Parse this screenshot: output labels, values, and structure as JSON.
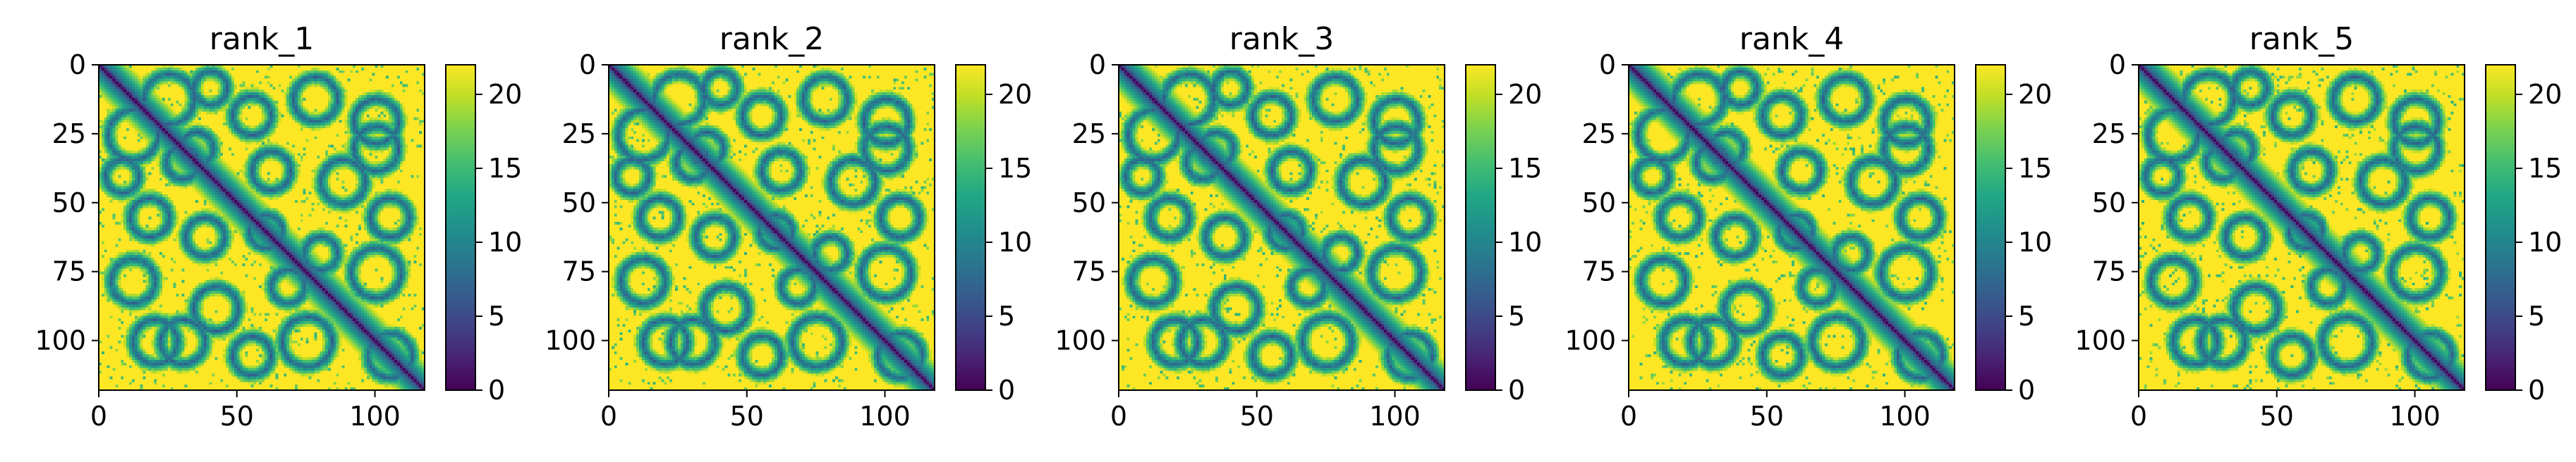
{
  "chart_data": [
    {
      "type": "heatmap",
      "title": "rank_1",
      "rows": 118,
      "cols": 118,
      "xlim": [
        0,
        118
      ],
      "ylim": [
        118,
        0
      ],
      "x_ticks": [
        0,
        50,
        100
      ],
      "y_ticks": [
        0,
        25,
        50,
        75,
        100
      ],
      "colorbar": {
        "min": 0,
        "max": 22,
        "ticks": [
          0,
          5,
          10,
          15,
          20
        ],
        "colormap": "viridis"
      },
      "diagonal_value": 0
    },
    {
      "type": "heatmap",
      "title": "rank_2",
      "rows": 118,
      "cols": 118,
      "xlim": [
        0,
        118
      ],
      "ylim": [
        118,
        0
      ],
      "x_ticks": [
        0,
        50,
        100
      ],
      "y_ticks": [
        0,
        25,
        50,
        75,
        100
      ],
      "colorbar": {
        "min": 0,
        "max": 22,
        "ticks": [
          0,
          5,
          10,
          15,
          20
        ],
        "colormap": "viridis"
      },
      "diagonal_value": 0
    },
    {
      "type": "heatmap",
      "title": "rank_3",
      "rows": 118,
      "cols": 118,
      "xlim": [
        0,
        118
      ],
      "ylim": [
        118,
        0
      ],
      "x_ticks": [
        0,
        50,
        100
      ],
      "y_ticks": [
        0,
        25,
        50,
        75,
        100
      ],
      "colorbar": {
        "min": 0,
        "max": 22,
        "ticks": [
          0,
          5,
          10,
          15,
          20
        ],
        "colormap": "viridis"
      },
      "diagonal_value": 0
    },
    {
      "type": "heatmap",
      "title": "rank_4",
      "rows": 118,
      "cols": 118,
      "xlim": [
        0,
        118
      ],
      "ylim": [
        118,
        0
      ],
      "x_ticks": [
        0,
        50,
        100
      ],
      "y_ticks": [
        0,
        25,
        50,
        75,
        100
      ],
      "colorbar": {
        "min": 0,
        "max": 22,
        "ticks": [
          0,
          5,
          10,
          15,
          20
        ],
        "colormap": "viridis"
      },
      "diagonal_value": 0
    },
    {
      "type": "heatmap",
      "title": "rank_5",
      "rows": 118,
      "cols": 118,
      "xlim": [
        0,
        118
      ],
      "ylim": [
        118,
        0
      ],
      "x_ticks": [
        0,
        50,
        100
      ],
      "y_ticks": [
        0,
        25,
        50,
        75,
        100
      ],
      "colorbar": {
        "min": 0,
        "max": 22,
        "ticks": [
          0,
          5,
          10,
          15,
          20
        ],
        "colormap": "viridis"
      },
      "diagonal_value": 0
    }
  ]
}
